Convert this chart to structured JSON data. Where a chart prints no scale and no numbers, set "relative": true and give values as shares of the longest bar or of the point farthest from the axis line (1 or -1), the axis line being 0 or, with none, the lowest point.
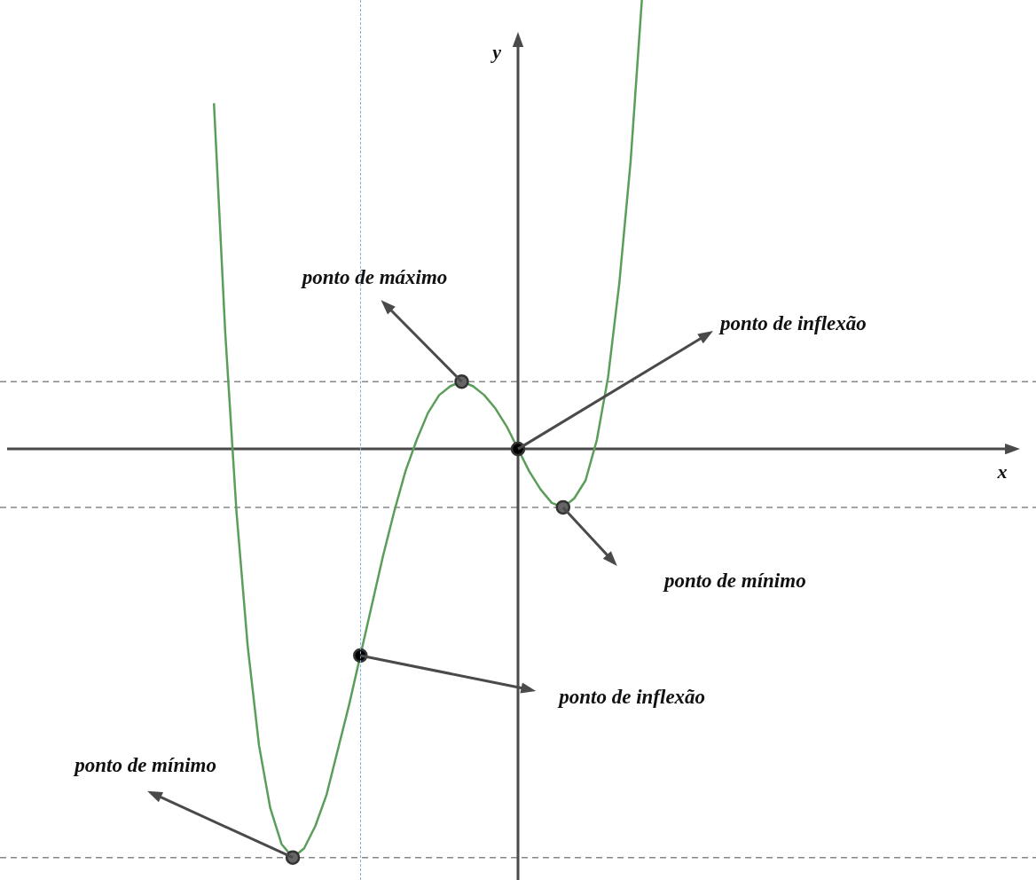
{
  "chart_data": {
    "type": "line",
    "relative": true,
    "xlabel": "x",
    "ylabel": "y",
    "categories": [
      null,
      null,
      null,
      null,
      null,
      null,
      null,
      null,
      null,
      null,
      null,
      null,
      null,
      null,
      null,
      null,
      null,
      null,
      null,
      null,
      null,
      null,
      null,
      null,
      null,
      null,
      null,
      null,
      null,
      null,
      null,
      null,
      null,
      null,
      null,
      null,
      null,
      null,
      null,
      null,
      null,
      null,
      null,
      null,
      null,
      null,
      null,
      null,
      null,
      null,
      null,
      null,
      null,
      null,
      null,
      null,
      null,
      null,
      null,
      null,
      null,
      null,
      null,
      null,
      null,
      null,
      null,
      null,
      null,
      null,
      null,
      null,
      null,
      null,
      null,
      null,
      null,
      null,
      null,
      null,
      null,
      null,
      null,
      null,
      null,
      null,
      null,
      null,
      null,
      null,
      null,
      null,
      null
    ],
    "series": [
      {
        "color": "#5a9e5a",
        "values": [
          null,
          null,
          null,
          null,
          null,
          null,
          null,
          null,
          null,
          null,
          null,
          null,
          null,
          null,
          null,
          null,
          null,
          null,
          null,
          0.77,
          0.26,
          -0.14,
          -0.44,
          -0.66,
          -0.8,
          -0.88,
          -0.91,
          -0.89,
          -0.84,
          -0.77,
          -0.67,
          -0.57,
          -0.46,
          -0.35,
          -0.24,
          -0.14,
          -0.05,
          0.02,
          0.08,
          0.12,
          0.14,
          0.15,
          0.14,
          0.12,
          0.09,
          0.05,
          0,
          -0.05,
          -0.09,
          -0.12,
          -0.13,
          -0.11,
          -0.07,
          0.02,
          0.16,
          0.37,
          0.64,
          1,
          null,
          null,
          null,
          null,
          null,
          null,
          null,
          null,
          null,
          null,
          null,
          null,
          null,
          null,
          null,
          null,
          null,
          null,
          null,
          null,
          null,
          null,
          null,
          null,
          null,
          null,
          null,
          null,
          null,
          null,
          null,
          null,
          null,
          null,
          null
        ],
        "colors": [
          null,
          null,
          null,
          null,
          null,
          null,
          null,
          null,
          null,
          null,
          null,
          null,
          null,
          null,
          null,
          null,
          null,
          null,
          null,
          null,
          null,
          null,
          null,
          null,
          null,
          null,
          "#666666",
          null,
          null,
          null,
          null,
          null,
          "#000000",
          null,
          null,
          null,
          null,
          null,
          null,
          null,
          null,
          "#666666",
          null,
          null,
          null,
          null,
          "#000000",
          null,
          null,
          null,
          "#666666",
          null,
          null,
          null,
          null,
          null,
          null,
          null,
          null,
          null,
          null,
          null,
          null,
          null,
          null,
          null,
          null,
          null,
          null,
          null,
          null,
          null,
          null,
          null,
          null,
          null,
          null,
          null,
          null,
          null,
          null,
          null,
          null,
          null,
          null,
          null,
          null,
          null,
          null,
          null,
          null,
          null,
          null
        ]
      }
    ],
    "ref_lines": [
      {
        "axis": "y",
        "value": 0.15,
        "color": "#888888",
        "line_style": "dashed"
      },
      {
        "axis": "y",
        "value": -0.13,
        "color": "#888888",
        "line_style": "dashed"
      },
      {
        "axis": "y",
        "value": -0.91,
        "color": "#888888",
        "line_style": "dashed"
      }
    ],
    "annotations": [
      "ponto de mínimo",
      "ponto de inflexão",
      "ponto de máximo",
      "ponto de inflexão",
      "ponto de mínimo"
    ]
  }
}
